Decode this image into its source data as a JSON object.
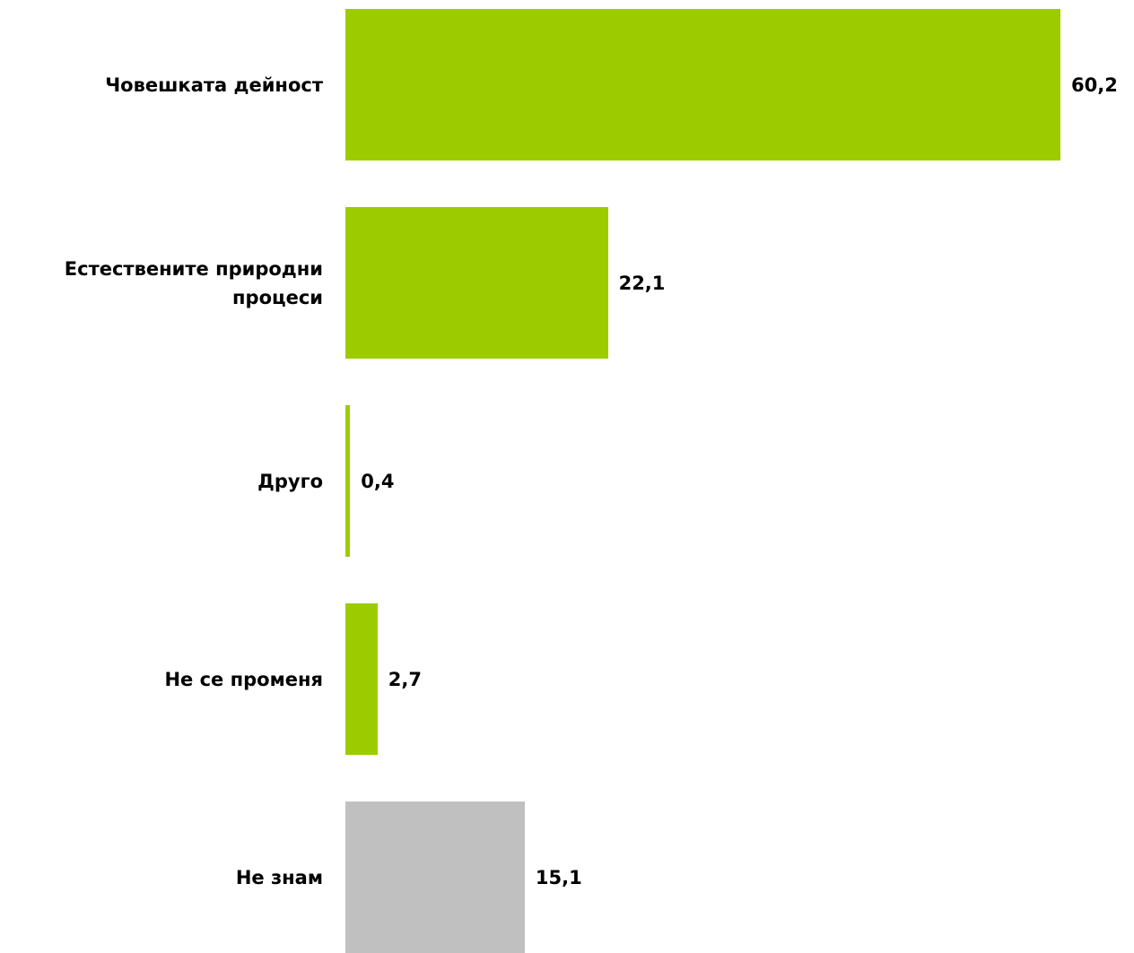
{
  "chart_data": {
    "type": "bar",
    "orientation": "horizontal",
    "categories": [
      "Човешката дейност",
      "Естествените природни процеси",
      "Друго",
      "Не се променя",
      "Не знам"
    ],
    "values": [
      60.2,
      22.1,
      0.4,
      2.7,
      15.1
    ],
    "value_labels": [
      "60,2",
      "22,1",
      "0,4",
      "2,7",
      "15,1"
    ],
    "colors": [
      "#9ccc00",
      "#9ccc00",
      "#9ccc00",
      "#9ccc00",
      "#c0c0c0"
    ]
  }
}
